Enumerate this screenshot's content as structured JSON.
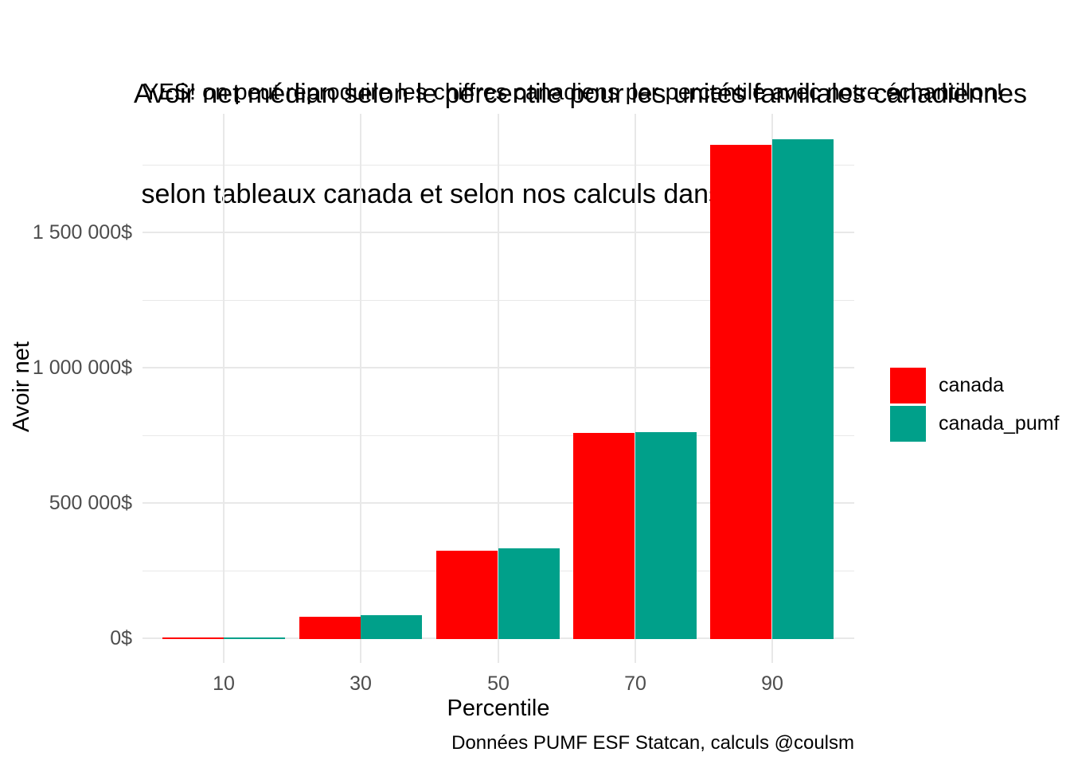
{
  "chart_data": {
    "type": "bar",
    "title_line1": "Avoir net médian selon le percentile pour les unités familiales canadiennes",
    "title_line2": " selon tableaux canada et selon nos calculs dans pumf",
    "subtitle": "YES! on peut reproduire les chiffres canadiens par percentile avec notre échantillon!",
    "caption": "Données PUMF ESF Statcan, calculs @coulsm",
    "xlabel": "Percentile",
    "ylabel": "Avoir net",
    "categories": [
      10,
      30,
      50,
      70,
      90
    ],
    "x_tick_labels": [
      "10",
      "30",
      "50",
      "70",
      "90"
    ],
    "series": [
      {
        "name": "canada",
        "color": "#FF0000",
        "values": [
          5000,
          82000,
          326000,
          762000,
          1826000
        ]
      },
      {
        "name": "canada_pumf",
        "color": "#00A08A",
        "values": [
          5000,
          88000,
          335000,
          765000,
          1847000
        ]
      }
    ],
    "y_ticks": [
      {
        "value": 0,
        "label": "0$"
      },
      {
        "value": 500000,
        "label": "500 000$"
      },
      {
        "value": 1000000,
        "label": "1 000 000$"
      },
      {
        "value": 1500000,
        "label": "1 500 000$"
      }
    ],
    "y_minor_gridlines": [
      250000,
      750000,
      1250000,
      1750000
    ],
    "ylim": [
      -91000,
      1938000
    ],
    "xlim": [
      -1.9,
      102
    ],
    "bar_group_width": 18,
    "grid": "horizontal major+minor, vertical major at ticks",
    "legend_position": "right",
    "colors": {
      "background": "#FFFFFF",
      "gridline": "#E8E8E8",
      "tick_label": "#4D4D4D",
      "text": "#000000"
    }
  }
}
